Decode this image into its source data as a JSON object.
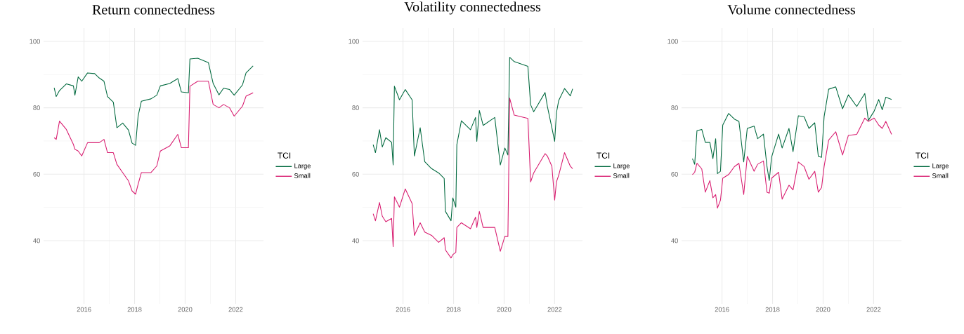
{
  "chart_data": [
    {
      "type": "line",
      "title": "Return connectedness",
      "legend_title": "TCI",
      "legend": "right",
      "grid": true,
      "xlim": [
        2014.4,
        2023.1
      ],
      "ylim": [
        21,
        104
      ],
      "xticks": [
        2016,
        2018,
        2020,
        2022
      ],
      "yticks": [
        40,
        60,
        80,
        100
      ],
      "x": [
        2014.82,
        2014.9,
        2015.03,
        2015.3,
        2015.58,
        2015.64,
        2015.77,
        2015.91,
        2016.14,
        2016.42,
        2016.6,
        2016.79,
        2016.93,
        2017.16,
        2017.3,
        2017.53,
        2017.76,
        2017.9,
        2018.04,
        2018.14,
        2018.27,
        2018.65,
        2018.88,
        2019.02,
        2019.39,
        2019.71,
        2019.85,
        2020.13,
        2020.19,
        2020.5,
        2020.92,
        2021.11,
        2021.34,
        2021.52,
        2021.76,
        2021.94,
        2022.27,
        2022.41,
        2022.69
      ],
      "series": [
        {
          "name": "Large",
          "color": "#00693e",
          "values": [
            86.0,
            83.4,
            85.2,
            87.2,
            86.6,
            83.8,
            89.3,
            88,
            90.5,
            90.3,
            89,
            88,
            83.4,
            81.7,
            74,
            75.4,
            73.3,
            69.4,
            68.7,
            77.5,
            82,
            82.7,
            83.8,
            86.6,
            87.3,
            88.8,
            84.8,
            84.5,
            94.7,
            94.9,
            93.6,
            87.3,
            83.9,
            85.9,
            85.5,
            83.8,
            86.9,
            90.5,
            92.6
          ]
        },
        {
          "name": "Small",
          "color": "#d81b6f",
          "values": [
            71,
            70.5,
            76,
            73.5,
            69,
            67.5,
            67,
            65.5,
            69.5,
            69.5,
            69.5,
            70.5,
            66.5,
            66.5,
            63,
            60.5,
            58,
            55,
            54,
            57,
            60.5,
            60.5,
            62.5,
            67,
            68.5,
            72,
            68,
            68,
            86.5,
            88,
            88,
            81,
            80,
            81,
            80,
            77.5,
            80.5,
            83.5,
            84.5
          ]
        }
      ]
    },
    {
      "type": "line",
      "title": "Volatility connectedness",
      "legend_title": "TCI",
      "legend": "right",
      "grid": true,
      "xlim": [
        2014.4,
        2023.1
      ],
      "ylim": [
        21,
        104
      ],
      "xticks": [
        2016,
        2018,
        2020,
        2022
      ],
      "yticks": [
        40,
        60,
        80,
        100
      ],
      "x": [
        2014.82,
        2014.91,
        2015.07,
        2015.18,
        2015.32,
        2015.55,
        2015.61,
        2015.66,
        2015.86,
        2016.09,
        2016.36,
        2016.45,
        2016.68,
        2016.86,
        2017.13,
        2017.41,
        2017.63,
        2017.68,
        2017.9,
        2017.97,
        2018.09,
        2018.13,
        2018.31,
        2018.67,
        2018.87,
        2018.92,
        2019.02,
        2019.17,
        2019.63,
        2019.85,
        2020.03,
        2020.15,
        2020.22,
        2020.4,
        2020.94,
        2021.05,
        2021.17,
        2021.62,
        2021.71,
        2021.89,
        2022.0,
        2022.07,
        2022.16,
        2022.39,
        2022.62,
        2022.71
      ],
      "series": [
        {
          "name": "Large",
          "color": "#00693e",
          "values": [
            68.9,
            66.5,
            73.4,
            68.2,
            71,
            69.6,
            62.8,
            86.5,
            82.4,
            85.5,
            82.4,
            65.5,
            74,
            63.8,
            61.7,
            60.4,
            58.7,
            48.8,
            46,
            52.9,
            50.1,
            68.9,
            76.1,
            73.4,
            77.1,
            69.9,
            79.2,
            74.7,
            77.1,
            62.8,
            67.9,
            65.8,
            95.2,
            93.9,
            92.5,
            80.9,
            78.8,
            84.6,
            80.5,
            74,
            69.9,
            78.5,
            82.2,
            85.8,
            83.6,
            85.7
          ]
        },
        {
          "name": "Small",
          "color": "#d81b6f",
          "values": [
            48.1,
            46,
            51.5,
            47.4,
            45.7,
            46.7,
            38.2,
            53.2,
            50.1,
            55.6,
            51.2,
            41.6,
            45.4,
            42.6,
            41.6,
            39.5,
            40.9,
            37.2,
            34.8,
            35.8,
            36.5,
            44,
            45.4,
            43.6,
            47.1,
            44,
            48.8,
            44,
            44,
            36.8,
            41.3,
            41.3,
            82.9,
            77.8,
            76.8,
            57.7,
            60.4,
            66.2,
            65.5,
            62.4,
            52.2,
            57.7,
            59.7,
            66.5,
            62.4,
            61.7
          ]
        }
      ]
    },
    {
      "type": "line",
      "title": "Volume connectedness",
      "legend_title": "TCI",
      "legend": "right",
      "grid": true,
      "xlim": [
        2014.4,
        2023.1
      ],
      "ylim": [
        21,
        104
      ],
      "xticks": [
        2016,
        2018,
        2020,
        2022
      ],
      "yticks": [
        40,
        60,
        80,
        100
      ],
      "x": [
        2014.83,
        2014.92,
        2015.01,
        2015.2,
        2015.34,
        2015.52,
        2015.64,
        2015.75,
        2015.82,
        2015.94,
        2016.03,
        2016.26,
        2016.49,
        2016.67,
        2016.86,
        2017.0,
        2017.27,
        2017.41,
        2017.64,
        2017.78,
        2017.87,
        2017.96,
        2018.24,
        2018.38,
        2018.65,
        2018.81,
        2019.02,
        2019.25,
        2019.44,
        2019.67,
        2019.81,
        2019.94,
        2020.04,
        2020.22,
        2020.5,
        2020.77,
        2021.0,
        2021.33,
        2021.65,
        2021.79,
        2022.02,
        2022.2,
        2022.34,
        2022.48,
        2022.71
      ],
      "series": [
        {
          "name": "Large",
          "color": "#00693e",
          "values": [
            64.7,
            63,
            73.1,
            73.5,
            69.6,
            69.6,
            64.7,
            70.7,
            60.2,
            60.9,
            74.8,
            78.3,
            76.6,
            75.9,
            63.7,
            73.8,
            74.5,
            70.7,
            72.1,
            62.3,
            58.1,
            65.1,
            72.1,
            67.9,
            73.8,
            66.8,
            77.6,
            77.3,
            73.8,
            75.5,
            65.4,
            65.1,
            77.3,
            85.6,
            86.3,
            79.7,
            83.9,
            80.4,
            84.3,
            76.2,
            79,
            82.5,
            79.4,
            83.2,
            82.5
          ]
        },
        {
          "name": "Small",
          "color": "#d81b6f",
          "values": [
            59.9,
            60.6,
            63.3,
            61.6,
            54.6,
            58.1,
            52.9,
            53.9,
            49.8,
            52.2,
            58.8,
            59.9,
            62.3,
            63.3,
            53.9,
            65.4,
            60.9,
            63,
            64,
            54.6,
            54.3,
            58.8,
            60.6,
            52.5,
            56.7,
            55.3,
            63.7,
            62.3,
            58.5,
            60.9,
            54.6,
            56,
            62.3,
            70.3,
            72.8,
            65.8,
            71.7,
            72,
            76.9,
            75.9,
            76.9,
            74.8,
            73.8,
            75.9,
            72
          ]
        }
      ]
    }
  ]
}
